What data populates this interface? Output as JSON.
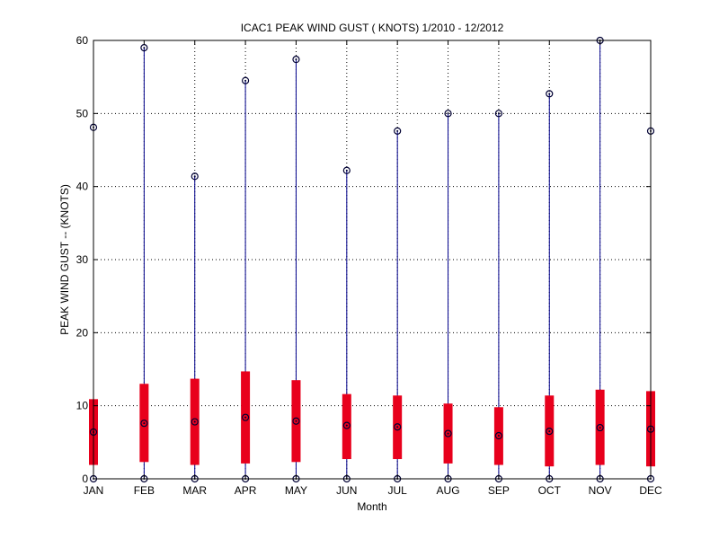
{
  "chart_data": {
    "type": "box",
    "title": "ICAC1  PEAK WIND GUST ( KNOTS) 1/2010 - 12/2012",
    "xlabel": "Month",
    "ylabel": "PEAK WIND GUST -- (KNOTS)",
    "ylim": [
      0,
      60
    ],
    "yticks": [
      0,
      10,
      20,
      30,
      40,
      50,
      60
    ],
    "grid": true,
    "categories": [
      "JAN",
      "FEB",
      "MAR",
      "APR",
      "MAY",
      "JUN",
      "JUL",
      "AUG",
      "SEP",
      "OCT",
      "NOV",
      "DEC"
    ],
    "min": [
      0,
      0,
      0,
      0,
      0,
      0,
      0,
      0,
      0,
      0,
      0,
      0
    ],
    "q1": [
      1.9,
      2.3,
      1.9,
      2.1,
      2.3,
      2.7,
      2.7,
      2.1,
      1.9,
      1.7,
      1.9,
      1.7
    ],
    "median": [
      6.4,
      7.6,
      7.8,
      8.4,
      7.9,
      7.3,
      7.1,
      6.2,
      5.9,
      6.5,
      7.0,
      6.8
    ],
    "q3": [
      10.9,
      13.0,
      13.7,
      14.7,
      13.5,
      11.6,
      11.4,
      10.3,
      9.8,
      11.4,
      12.2,
      12.0
    ],
    "max": [
      48.1,
      59.0,
      41.4,
      54.5,
      57.4,
      42.2,
      47.6,
      50.0,
      50.0,
      52.7,
      60.0,
      47.6
    ],
    "colors": {
      "whisker": "#00008b",
      "box": "#e8001c",
      "marker": "#000033",
      "grid": "#000000"
    }
  }
}
